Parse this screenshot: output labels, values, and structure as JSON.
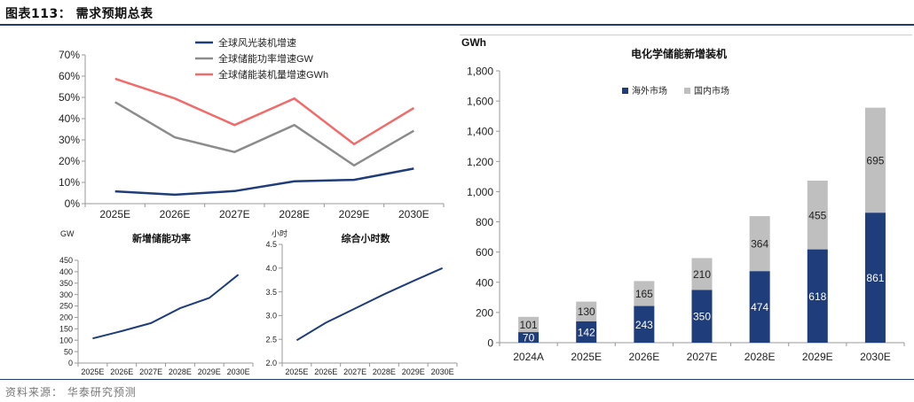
{
  "header": {
    "title": "图表113：  需求预期总表"
  },
  "footer": {
    "source": "资料来源：  华泰研究预测"
  },
  "chart_data": [
    {
      "type": "line",
      "title": "",
      "categories": [
        "2025E",
        "2026E",
        "2027E",
        "2028E",
        "2029E",
        "2030E"
      ],
      "yticks": [
        "0%",
        "10%",
        "20%",
        "30%",
        "40%",
        "50%",
        "60%",
        "70%"
      ],
      "ylim": [
        0,
        0.7
      ],
      "legend_position": "top",
      "series": [
        {
          "name": "全球风光装机增速",
          "color": "#1f3d7a",
          "values": [
            0.058,
            0.042,
            0.059,
            0.105,
            0.112,
            0.165
          ]
        },
        {
          "name": "全球储能功率增速GW",
          "color": "#8c8c8c",
          "values": [
            0.478,
            0.312,
            0.243,
            0.37,
            0.18,
            0.343
          ]
        },
        {
          "name": "全球储能装机量增速GWh",
          "color": "#f26b6b",
          "values": [
            0.588,
            0.495,
            0.37,
            0.495,
            0.28,
            0.45
          ]
        }
      ]
    },
    {
      "type": "line",
      "title": "新增储能功率",
      "ylabel": "GW",
      "categories": [
        "2025E",
        "2026E",
        "2027E",
        "2028E",
        "2029E",
        "2030E"
      ],
      "yticks": [
        "0",
        "50",
        "100",
        "150",
        "200",
        "250",
        "300",
        "350",
        "400",
        "450"
      ],
      "ylim": [
        0,
        450
      ],
      "series": [
        {
          "color": "#1f3d7a",
          "values": [
            108,
            140,
            175,
            240,
            285,
            387
          ]
        }
      ]
    },
    {
      "type": "line",
      "title": "综合小时数",
      "ylabel": "小时",
      "categories": [
        "2025E",
        "2026E",
        "2027E",
        "2028E",
        "2029E",
        "2030E"
      ],
      "yticks": [
        "2.0",
        "2.5",
        "3.0",
        "3.5",
        "4.0",
        "4.5"
      ],
      "ylim": [
        2.0,
        4.5
      ],
      "series": [
        {
          "color": "#1f3d7a",
          "values": [
            2.48,
            2.85,
            3.15,
            3.45,
            3.73,
            4.0
          ]
        }
      ]
    },
    {
      "type": "bar",
      "stacked": true,
      "title": "电化学储能新增装机",
      "ylabel": "GWh",
      "categories": [
        "2024A",
        "2025E",
        "2026E",
        "2027E",
        "2028E",
        "2029E",
        "2030E"
      ],
      "yticks": [
        "0",
        "200",
        "400",
        "600",
        "800",
        "1,000",
        "1,200",
        "1,400",
        "1,600",
        "1,800"
      ],
      "ylim": [
        0,
        1800
      ],
      "legend_position": "top-left",
      "series": [
        {
          "name": "海外市场",
          "color": "#1f3d7a",
          "label_color": "#ffffff",
          "values": [
            70,
            142,
            243,
            350,
            474,
            618,
            861
          ]
        },
        {
          "name": "国内市场",
          "color": "#bfbfbf",
          "label_color": "#222222",
          "values": [
            101,
            130,
            165,
            210,
            364,
            455,
            695
          ]
        }
      ]
    }
  ]
}
